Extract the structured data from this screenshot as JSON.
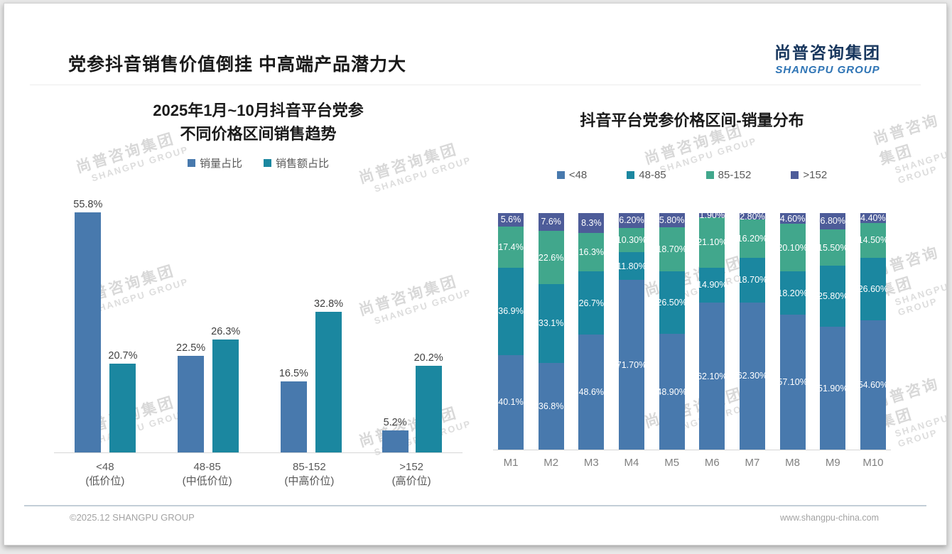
{
  "page": {
    "title": "党参抖音销售价值倒挂 中高端产品潜力大",
    "logo": {
      "cn": "尚普咨询集团",
      "en": "SHANGPU GROUP"
    },
    "watermark": {
      "line1": "尚普咨询集团",
      "line2": "SHANGPU GROUP"
    },
    "footer": {
      "left": "©2025.12 SHANGPU GROUP",
      "right": "www.shangpu-china.com"
    }
  },
  "colors": {
    "blue": "#4879ad",
    "teal": "#1b87a0",
    "green": "#41a78c",
    "slate": "#4d5c99",
    "axis_line": "#d6d6d6",
    "label_dark": "#3f3f3f",
    "label_gray": "#595959",
    "logo_navy": "#17365d",
    "logo_blue": "#2e74b5"
  },
  "chart_data": [
    {
      "type": "bar",
      "title_lines": [
        "2025年1月~10月抖音平台党参",
        "不同价格区间销售趋势"
      ],
      "title": "2025年1月~10月抖音平台党参不同价格区间销售趋势",
      "categories": [
        {
          "range": "<48",
          "tier": "(低价位)"
        },
        {
          "range": "48-85",
          "tier": "(中低价位)"
        },
        {
          "range": "85-152",
          "tier": "(中高价位)"
        },
        {
          "range": ">152",
          "tier": "(高价位)"
        }
      ],
      "series": [
        {
          "name": "销量占比",
          "color": "#4879ad",
          "values": [
            55.8,
            22.5,
            16.5,
            5.2
          ],
          "labels": [
            "55.8%",
            "22.5%",
            "16.5%",
            "5.2%"
          ]
        },
        {
          "name": "销售额占比",
          "color": "#1b87a0",
          "values": [
            20.7,
            26.3,
            32.8,
            20.2
          ],
          "labels": [
            "20.7%",
            "26.3%",
            "32.8%",
            "20.2%"
          ]
        }
      ],
      "ylim": [
        0,
        60
      ],
      "grid": false,
      "legend_position": "top",
      "unit": "%"
    },
    {
      "type": "stacked-bar",
      "title": "抖音平台党参价格区间-销量分布",
      "categories": [
        "M1",
        "M2",
        "M3",
        "M4",
        "M5",
        "M6",
        "M7",
        "M8",
        "M9",
        "M10"
      ],
      "series": [
        {
          "name": "<48",
          "color": "#4879ad",
          "values": [
            40.1,
            36.8,
            48.6,
            71.7,
            48.9,
            62.1,
            62.3,
            57.1,
            51.9,
            54.6
          ],
          "labels": [
            "40.1%",
            "36.8%",
            "48.6%",
            "71.70%",
            "48.90%",
            "62.10%",
            "62.30%",
            "57.10%",
            "51.90%",
            "54.60%"
          ]
        },
        {
          "name": "48-85",
          "color": "#1b87a0",
          "values": [
            36.9,
            33.1,
            26.7,
            11.8,
            26.5,
            14.9,
            18.7,
            18.2,
            25.8,
            26.6
          ],
          "labels": [
            "36.9%",
            "33.1%",
            "26.7%",
            "11.80%",
            "26.50%",
            "14.90%",
            "18.70%",
            "18.20%",
            "25.80%",
            "26.60%"
          ]
        },
        {
          "name": "85-152",
          "color": "#41a78c",
          "values": [
            17.4,
            22.6,
            16.3,
            10.3,
            18.7,
            21.1,
            16.2,
            20.1,
            15.5,
            14.5
          ],
          "labels": [
            "17.4%",
            "22.6%",
            "16.3%",
            "10.30%",
            "18.70%",
            "21.10%",
            "16.20%",
            "20.10%",
            "15.50%",
            "14.50%"
          ]
        },
        {
          "name": ">152",
          "color": "#4d5c99",
          "values": [
            5.6,
            7.6,
            8.3,
            6.2,
            5.8,
            1.9,
            2.8,
            4.6,
            6.8,
            4.4
          ],
          "labels": [
            "5.6%",
            "7.6%",
            "8.3%",
            "6.20%",
            "5.80%",
            "1.90%",
            "2.80%",
            "4.60%",
            "6.80%",
            "4.40%"
          ]
        }
      ],
      "ylim": [
        0,
        100
      ],
      "grid": false,
      "legend_position": "top",
      "unit": "%"
    }
  ]
}
